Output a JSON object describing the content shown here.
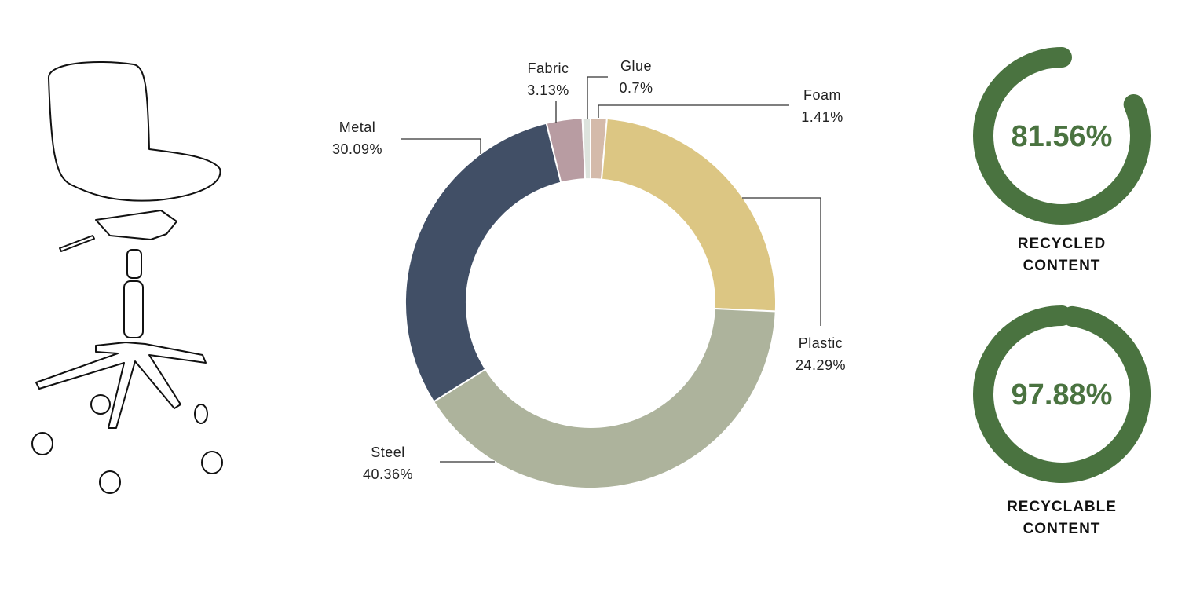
{
  "chart_data": [
    {
      "type": "donut",
      "categories": [
        "Foam",
        "Plastic",
        "Steel",
        "Metal",
        "Fabric",
        "Glue"
      ],
      "values": [
        1.41,
        24.29,
        40.36,
        30.09,
        3.13,
        0.7
      ],
      "value_labels": [
        "1.41%",
        "24.29%",
        "40.36%",
        "30.09%",
        "3.13%",
        "0.7%"
      ],
      "colors": [
        "#d4baaa",
        "#dcc683",
        "#adb39c",
        "#414f66",
        "#b89ca2",
        "#dde3dd"
      ]
    },
    {
      "type": "gauge",
      "title": "RECYCLED CONTENT",
      "values": [
        81.56
      ],
      "value_labels": [
        "81.56%"
      ],
      "ylim": [
        0,
        100
      ],
      "color": "#4a7340"
    },
    {
      "type": "gauge",
      "title": "RECYCLABLE CONTENT",
      "values": [
        97.88
      ],
      "value_labels": [
        "97.88%"
      ],
      "ylim": [
        0,
        100
      ],
      "color": "#4a7340"
    }
  ]
}
